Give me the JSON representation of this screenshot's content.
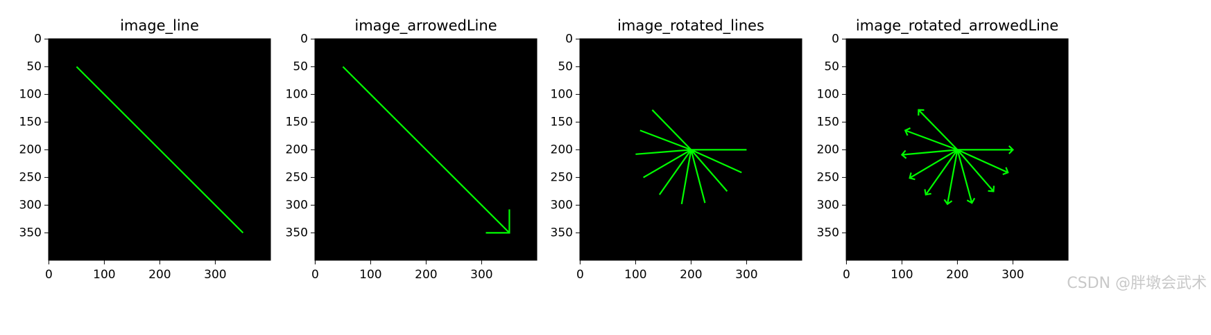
{
  "chart_data": [
    {
      "type": "line",
      "title": "image_line",
      "background": "#000000",
      "arrows": false,
      "xlim": [
        -0.5,
        399.5
      ],
      "ylim": [
        399.5,
        -0.5
      ],
      "xticks": [
        0,
        100,
        200,
        300
      ],
      "yticks": [
        0,
        50,
        100,
        150,
        200,
        250,
        300,
        350
      ],
      "series": [
        {
          "color": "#00ff00",
          "x": [
            50,
            350
          ],
          "values": [
            50,
            350
          ]
        }
      ]
    },
    {
      "type": "line",
      "title": "image_arrowedLine",
      "background": "#000000",
      "arrows": true,
      "tip_length": 0.1,
      "xlim": [
        -0.5,
        399.5
      ],
      "ylim": [
        399.5,
        -0.5
      ],
      "xticks": [
        0,
        100,
        200,
        300
      ],
      "yticks": [
        0,
        50,
        100,
        150,
        200,
        250,
        300,
        350
      ],
      "series": [
        {
          "color": "#00ff00",
          "x": [
            50,
            350
          ],
          "values": [
            50,
            350
          ]
        }
      ]
    },
    {
      "type": "line",
      "title": "image_rotated_lines",
      "background": "#000000",
      "arrows": false,
      "xlim": [
        -0.5,
        399.5
      ],
      "ylim": [
        399.5,
        -0.5
      ],
      "xticks": [
        0,
        100,
        200,
        300
      ],
      "yticks": [
        0,
        50,
        100,
        150,
        200,
        250,
        300,
        350
      ],
      "series": [
        {
          "color": "#00ff00",
          "x": [
            200,
            300
          ],
          "values": [
            200,
            200
          ]
        },
        {
          "color": "#00ff00",
          "x": [
            200,
            291
          ],
          "values": [
            200,
            241
          ]
        },
        {
          "color": "#00ff00",
          "x": [
            200,
            265
          ],
          "values": [
            200,
            275
          ]
        },
        {
          "color": "#00ff00",
          "x": [
            200,
            225
          ],
          "values": [
            200,
            296
          ]
        },
        {
          "color": "#00ff00",
          "x": [
            200,
            183
          ],
          "values": [
            200,
            298
          ]
        },
        {
          "color": "#00ff00",
          "x": [
            200,
            143
          ],
          "values": [
            200,
            281
          ]
        },
        {
          "color": "#00ff00",
          "x": [
            200,
            114
          ],
          "values": [
            200,
            250
          ]
        },
        {
          "color": "#00ff00",
          "x": [
            200,
            100
          ],
          "values": [
            200,
            208
          ]
        },
        {
          "color": "#00ff00",
          "x": [
            200,
            108
          ],
          "values": [
            200,
            165
          ]
        },
        {
          "color": "#00ff00",
          "x": [
            200,
            130
          ],
          "values": [
            200,
            128
          ]
        }
      ]
    },
    {
      "type": "line",
      "title": "image_rotated_arrowedLine",
      "background": "#000000",
      "arrows": true,
      "tip_length": 0.1,
      "xlim": [
        -0.5,
        399.5
      ],
      "ylim": [
        399.5,
        -0.5
      ],
      "xticks": [
        0,
        100,
        200,
        300
      ],
      "yticks": [
        0,
        50,
        100,
        150,
        200,
        250,
        300,
        350
      ],
      "series": [
        {
          "color": "#00ff00",
          "x": [
            200,
            300
          ],
          "values": [
            200,
            200
          ]
        },
        {
          "color": "#00ff00",
          "x": [
            200,
            291
          ],
          "values": [
            200,
            241
          ]
        },
        {
          "color": "#00ff00",
          "x": [
            200,
            265
          ],
          "values": [
            200,
            275
          ]
        },
        {
          "color": "#00ff00",
          "x": [
            200,
            226
          ],
          "values": [
            200,
            296
          ]
        },
        {
          "color": "#00ff00",
          "x": [
            200,
            182
          ],
          "values": [
            200,
            298
          ]
        },
        {
          "color": "#00ff00",
          "x": [
            200,
            143
          ],
          "values": [
            200,
            281
          ]
        },
        {
          "color": "#00ff00",
          "x": [
            200,
            114
          ],
          "values": [
            200,
            251
          ]
        },
        {
          "color": "#00ff00",
          "x": [
            200,
            100
          ],
          "values": [
            200,
            209
          ]
        },
        {
          "color": "#00ff00",
          "x": [
            200,
            106
          ],
          "values": [
            200,
            165
          ]
        },
        {
          "color": "#00ff00",
          "x": [
            200,
            130
          ],
          "values": [
            200,
            128
          ]
        }
      ]
    }
  ],
  "watermark": "CSDN @胖墩会武术"
}
